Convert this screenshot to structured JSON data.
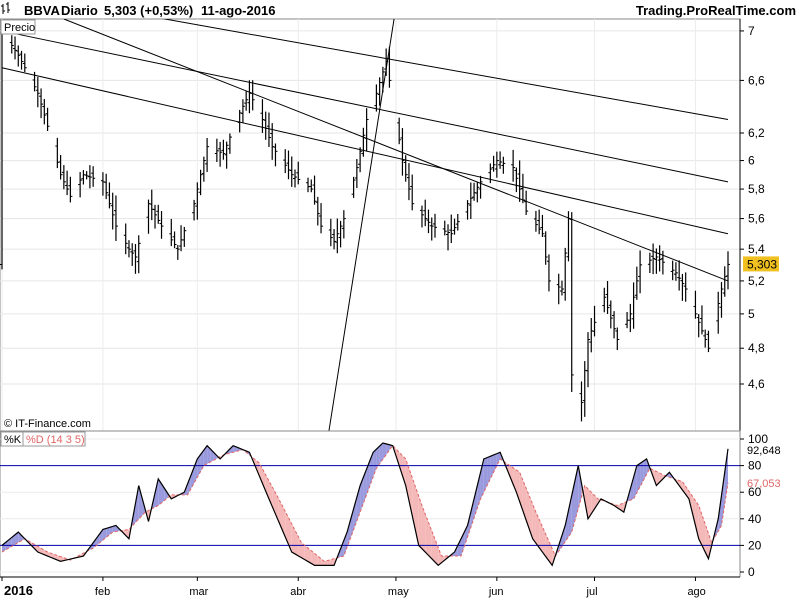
{
  "header": {
    "symbol": "BBVA",
    "period": "Diario",
    "price_change": "5,303 (+0,53%)",
    "date": "11-ago-2016",
    "brand": "Trading.ProRealTime.com"
  },
  "price_panel": {
    "tag": "Precio",
    "copyright": "© IT-Finance.com",
    "last_price_label": "5,303"
  },
  "stoch_panel": {
    "k_label": "%K",
    "d_label": "%D (14 3 5)",
    "k_value_label": "92,648",
    "d_value_label": "67,053"
  },
  "colors": {
    "k_line": "#000000",
    "d_line": "#e06666",
    "fill_k_above": "#9999dd",
    "fill_d_above": "#f4b8b8",
    "level_lines": "#0000aa",
    "last_price_tag": "#f0c020"
  },
  "chart_data": [
    {
      "type": "ohlc",
      "title": "BBVA Diario",
      "x_axis": {
        "type": "date",
        "range": [
          "2016-01-01",
          "2016-08-11"
        ],
        "tick_labels": [
          "2016",
          "feb",
          "mar",
          "abr",
          "may",
          "jun",
          "jul",
          "ago"
        ]
      },
      "y_axis": {
        "range": [
          4.35,
          7.1
        ],
        "tick_labels": [
          "4,6",
          "4,8",
          "5",
          "5,2",
          "5,4",
          "5,6",
          "5,8",
          "6",
          "6,2",
          "6,6",
          "7"
        ]
      },
      "last": 5.303,
      "close_path": [
        [
          "2016-01-01",
          7.0
        ],
        [
          "2016-01-06",
          6.8
        ],
        [
          "2016-01-12",
          6.5
        ],
        [
          "2016-01-15",
          6.25
        ],
        [
          "2016-01-19",
          5.9
        ],
        [
          "2016-01-22",
          5.75
        ],
        [
          "2016-01-26",
          5.9
        ],
        [
          "2016-02-01",
          5.85
        ],
        [
          "2016-02-05",
          5.55
        ],
        [
          "2016-02-09",
          5.4
        ],
        [
          "2016-02-11",
          5.35
        ],
        [
          "2016-02-15",
          5.7
        ],
        [
          "2016-02-19",
          5.55
        ],
        [
          "2016-02-24",
          5.4
        ],
        [
          "2016-02-29",
          5.7
        ],
        [
          "2016-03-04",
          6.1
        ],
        [
          "2016-03-09",
          6.05
        ],
        [
          "2016-03-14",
          6.35
        ],
        [
          "2016-03-17",
          6.5
        ],
        [
          "2016-03-21",
          6.3
        ],
        [
          "2016-03-24",
          6.1
        ],
        [
          "2016-03-30",
          5.9
        ],
        [
          "2016-04-05",
          5.8
        ],
        [
          "2016-04-08",
          5.55
        ],
        [
          "2016-04-12",
          5.45
        ],
        [
          "2016-04-15",
          5.6
        ],
        [
          "2016-04-19",
          5.95
        ],
        [
          "2016-04-22",
          6.3
        ],
        [
          "2016-04-25",
          6.5
        ],
        [
          "2016-04-28",
          6.75
        ],
        [
          "2016-05-03",
          6.0
        ],
        [
          "2016-05-06",
          5.7
        ],
        [
          "2016-05-12",
          5.55
        ],
        [
          "2016-05-18",
          5.5
        ],
        [
          "2016-05-23",
          5.7
        ],
        [
          "2016-05-27",
          5.85
        ],
        [
          "2016-06-01",
          6.0
        ],
        [
          "2016-06-06",
          5.95
        ],
        [
          "2016-06-10",
          5.65
        ],
        [
          "2016-06-15",
          5.5
        ],
        [
          "2016-06-17",
          5.2
        ],
        [
          "2016-06-21",
          5.15
        ],
        [
          "2016-06-23",
          5.6
        ],
        [
          "2016-06-24",
          4.65
        ],
        [
          "2016-06-27",
          4.5
        ],
        [
          "2016-06-29",
          4.85
        ],
        [
          "2016-07-04",
          5.1
        ],
        [
          "2016-07-08",
          4.85
        ],
        [
          "2016-07-12",
          5.0
        ],
        [
          "2016-07-15",
          5.3
        ],
        [
          "2016-07-20",
          5.35
        ],
        [
          "2016-07-26",
          5.25
        ],
        [
          "2016-07-29",
          5.15
        ],
        [
          "2016-08-02",
          4.95
        ],
        [
          "2016-08-05",
          4.8
        ],
        [
          "2016-08-09",
          5.15
        ],
        [
          "2016-08-11",
          5.303
        ]
      ],
      "trendlines": [
        {
          "from": [
            "2016-01-01",
            7.35
          ],
          "to": [
            "2016-08-11",
            6.3
          ]
        },
        {
          "from": [
            "2016-01-01",
            7.0
          ],
          "to": [
            "2016-08-11",
            5.85
          ]
        },
        {
          "from": [
            "2016-01-01",
            6.7
          ],
          "to": [
            "2016-08-11",
            5.5
          ]
        },
        {
          "from": [
            "2016-01-20",
            7.1
          ],
          "to": [
            "2016-08-11",
            5.2
          ]
        },
        {
          "from": [
            "2016-04-08",
            4.1
          ],
          "to": [
            "2016-05-01",
            7.2
          ]
        }
      ]
    },
    {
      "type": "line",
      "title": "%K %D (14 3 5)",
      "x_axis": {
        "type": "date",
        "range": [
          "2016-01-01",
          "2016-08-11"
        ]
      },
      "y_axis": {
        "range": [
          0,
          100
        ],
        "tick_labels": [
          "0",
          "20",
          "40",
          "60",
          "80",
          "100"
        ]
      },
      "levels": [
        20,
        80
      ],
      "series": [
        {
          "name": "%K",
          "points": [
            [
              "2016-01-01",
              20
            ],
            [
              "2016-01-06",
              30
            ],
            [
              "2016-01-12",
              15
            ],
            [
              "2016-01-19",
              8
            ],
            [
              "2016-01-26",
              12
            ],
            [
              "2016-02-01",
              32
            ],
            [
              "2016-02-05",
              35
            ],
            [
              "2016-02-09",
              25
            ],
            [
              "2016-02-12",
              65
            ],
            [
              "2016-02-15",
              38
            ],
            [
              "2016-02-18",
              70
            ],
            [
              "2016-02-22",
              55
            ],
            [
              "2016-02-26",
              60
            ],
            [
              "2016-03-01",
              85
            ],
            [
              "2016-03-04",
              95
            ],
            [
              "2016-03-08",
              85
            ],
            [
              "2016-03-12",
              95
            ],
            [
              "2016-03-17",
              90
            ],
            [
              "2016-03-23",
              55
            ],
            [
              "2016-03-30",
              15
            ],
            [
              "2016-04-06",
              5
            ],
            [
              "2016-04-12",
              5
            ],
            [
              "2016-04-16",
              30
            ],
            [
              "2016-04-20",
              65
            ],
            [
              "2016-04-24",
              90
            ],
            [
              "2016-04-27",
              97
            ],
            [
              "2016-04-30",
              95
            ],
            [
              "2016-05-04",
              65
            ],
            [
              "2016-05-08",
              20
            ],
            [
              "2016-05-14",
              5
            ],
            [
              "2016-05-19",
              15
            ],
            [
              "2016-05-23",
              35
            ],
            [
              "2016-05-28",
              85
            ],
            [
              "2016-06-02",
              90
            ],
            [
              "2016-06-07",
              60
            ],
            [
              "2016-06-12",
              25
            ],
            [
              "2016-06-18",
              5
            ],
            [
              "2016-06-22",
              35
            ],
            [
              "2016-06-26",
              80
            ],
            [
              "2016-06-29",
              40
            ],
            [
              "2016-07-03",
              55
            ],
            [
              "2016-07-07",
              50
            ],
            [
              "2016-07-10",
              45
            ],
            [
              "2016-07-14",
              80
            ],
            [
              "2016-07-17",
              85
            ],
            [
              "2016-07-20",
              65
            ],
            [
              "2016-07-24",
              75
            ],
            [
              "2016-07-27",
              65
            ],
            [
              "2016-07-30",
              55
            ],
            [
              "2016-08-02",
              25
            ],
            [
              "2016-08-05",
              10
            ],
            [
              "2016-08-08",
              40
            ],
            [
              "2016-08-11",
              92.648
            ]
          ]
        },
        {
          "name": "%D",
          "points": [
            [
              "2016-01-01",
              15
            ],
            [
              "2016-01-08",
              25
            ],
            [
              "2016-01-15",
              15
            ],
            [
              "2016-01-22",
              9
            ],
            [
              "2016-01-29",
              18
            ],
            [
              "2016-02-04",
              30
            ],
            [
              "2016-02-09",
              32
            ],
            [
              "2016-02-14",
              45
            ],
            [
              "2016-02-18",
              50
            ],
            [
              "2016-02-22",
              58
            ],
            [
              "2016-02-27",
              58
            ],
            [
              "2016-03-03",
              80
            ],
            [
              "2016-03-09",
              88
            ],
            [
              "2016-03-15",
              92
            ],
            [
              "2016-03-20",
              82
            ],
            [
              "2016-03-26",
              55
            ],
            [
              "2016-04-02",
              22
            ],
            [
              "2016-04-09",
              8
            ],
            [
              "2016-04-15",
              12
            ],
            [
              "2016-04-20",
              45
            ],
            [
              "2016-04-25",
              78
            ],
            [
              "2016-04-30",
              95
            ],
            [
              "2016-05-04",
              85
            ],
            [
              "2016-05-09",
              50
            ],
            [
              "2016-05-15",
              12
            ],
            [
              "2016-05-21",
              12
            ],
            [
              "2016-05-27",
              55
            ],
            [
              "2016-06-02",
              85
            ],
            [
              "2016-06-08",
              75
            ],
            [
              "2016-06-13",
              45
            ],
            [
              "2016-06-19",
              12
            ],
            [
              "2016-06-24",
              30
            ],
            [
              "2016-06-28",
              65
            ],
            [
              "2016-07-02",
              55
            ],
            [
              "2016-07-08",
              50
            ],
            [
              "2016-07-13",
              55
            ],
            [
              "2016-07-18",
              78
            ],
            [
              "2016-07-23",
              72
            ],
            [
              "2016-07-28",
              68
            ],
            [
              "2016-08-02",
              50
            ],
            [
              "2016-08-06",
              22
            ],
            [
              "2016-08-09",
              35
            ],
            [
              "2016-08-11",
              67.053
            ]
          ]
        }
      ]
    }
  ]
}
